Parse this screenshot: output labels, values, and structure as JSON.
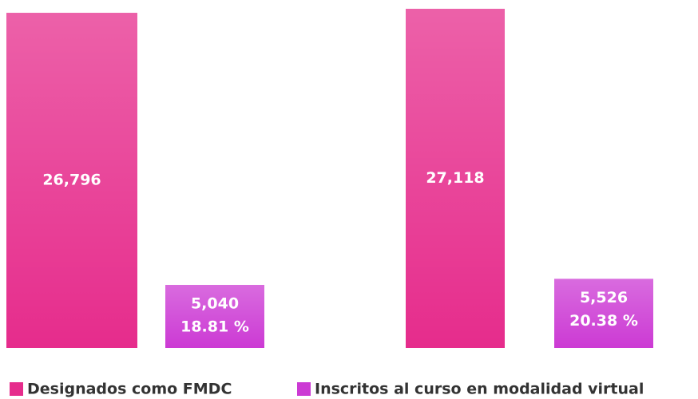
{
  "chart_data": {
    "type": "bar",
    "categories": [
      null,
      null
    ],
    "series": [
      {
        "name": "Designados como FMDC",
        "color": "#e62c8c",
        "values": [
          26796,
          27118
        ],
        "value_labels": [
          "26,796",
          "27,118"
        ]
      },
      {
        "name": "Inscritos al curso en modalidad virtual",
        "color": "#cc3ad4",
        "values": [
          5040,
          5526
        ],
        "value_labels": [
          "5,040",
          "5,526"
        ],
        "percent_labels": [
          "18.81 %",
          "20.38 %"
        ]
      }
    ],
    "ylim": [
      0,
      27820
    ],
    "legend": "bottom"
  }
}
